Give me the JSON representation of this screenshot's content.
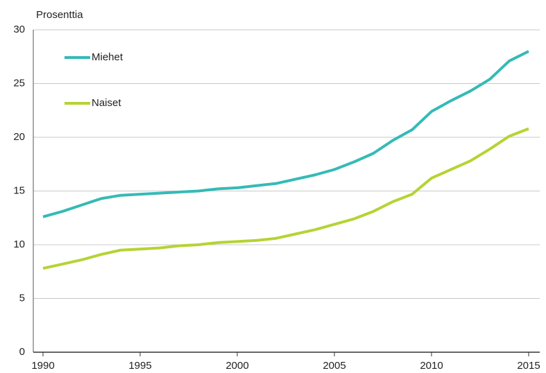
{
  "chart_data": {
    "type": "line",
    "ylabel": "Prosenttia",
    "x": [
      1990,
      1991,
      1992,
      1993,
      1994,
      1995,
      1996,
      1997,
      1998,
      1999,
      2000,
      2001,
      2002,
      2003,
      2004,
      2005,
      2006,
      2007,
      2008,
      2009,
      2010,
      2011,
      2012,
      2013,
      2014,
      2015
    ],
    "series": [
      {
        "name": "Miehet",
        "color": "#35bab6",
        "values": [
          12.6,
          13.1,
          13.7,
          14.3,
          14.6,
          14.7,
          14.8,
          14.9,
          15.0,
          15.2,
          15.3,
          15.5,
          15.7,
          16.1,
          16.5,
          17.0,
          17.7,
          18.5,
          19.7,
          20.7,
          22.4,
          23.4,
          24.3,
          25.4,
          27.1,
          28.0
        ]
      },
      {
        "name": "Naiset",
        "color": "#b5d334",
        "values": [
          7.8,
          8.2,
          8.6,
          9.1,
          9.5,
          9.6,
          9.7,
          9.9,
          10.0,
          10.2,
          10.3,
          10.4,
          10.6,
          11.0,
          11.4,
          11.9,
          12.4,
          13.1,
          14.0,
          14.7,
          16.2,
          17.0,
          17.8,
          18.9,
          20.1,
          20.8
        ]
      }
    ],
    "xlim": [
      1990,
      2015
    ],
    "xticks": [
      1990,
      1995,
      2000,
      2005,
      2010,
      2015
    ],
    "ylim": [
      0,
      30
    ],
    "yticks": [
      0,
      5,
      10,
      15,
      20,
      25,
      30
    ],
    "grid": true
  }
}
